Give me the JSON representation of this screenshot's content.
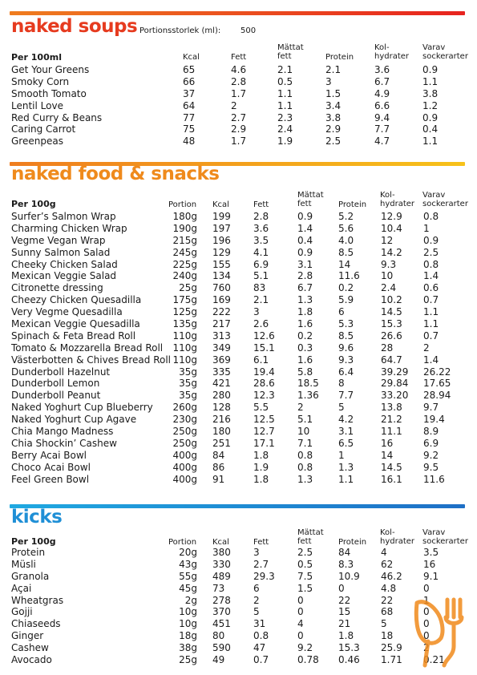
{
  "soups": {
    "title": "naked soups",
    "portion_label": "Portionsstorlek (ml):",
    "portion_value": "500",
    "headers": {
      "first": "Per 100ml",
      "kcal": "Kcal",
      "fett": "Fett",
      "mattat": [
        "Mättat",
        "fett"
      ],
      "protein": "Protein",
      "kolhydrater": [
        "Kol-",
        "hydrater"
      ],
      "varav": [
        "Varav",
        "sockerarter"
      ]
    },
    "rows": [
      {
        "name": "Get Your Greens",
        "kcal": "65",
        "fett": "4.6",
        "mattat": "2.1",
        "protein": "2.1",
        "kolhydrater": "3.6",
        "socker": "0.9"
      },
      {
        "name": "Smoky Corn",
        "kcal": "66",
        "fett": "2.8",
        "mattat": "0.5",
        "protein": "3",
        "kolhydrater": "6.7",
        "socker": "1.1"
      },
      {
        "name": "Smooth Tomato",
        "kcal": "37",
        "fett": "1.7",
        "mattat": "1.1",
        "protein": "1.5",
        "kolhydrater": "4.9",
        "socker": "3.8"
      },
      {
        "name": "Lentil Love",
        "kcal": "64",
        "fett": "2",
        "mattat": "1.1",
        "protein": "3.4",
        "kolhydrater": "6.6",
        "socker": "1.2"
      },
      {
        "name": "Red Curry & Beans",
        "kcal": "77",
        "fett": "2.7",
        "mattat": "2.3",
        "protein": "3.8",
        "kolhydrater": "9.4",
        "socker": "0.9"
      },
      {
        "name": "Caring Carrot",
        "kcal": "75",
        "fett": "2.9",
        "mattat": "2.4",
        "protein": "2.9",
        "kolhydrater": "7.7",
        "socker": "0.4"
      },
      {
        "name": "Greenpeas",
        "kcal": "48",
        "fett": "1.7",
        "mattat": "1.9",
        "protein": "2.5",
        "kolhydrater": "4.7",
        "socker": "1.1"
      }
    ]
  },
  "food": {
    "title": "naked food & snacks",
    "headers": {
      "first": "Per 100g",
      "portion": "Portion",
      "kcal": "Kcal",
      "fett": "Fett",
      "mattat": [
        "Mättat",
        "fett"
      ],
      "protein": "Protein",
      "kolhydrater": [
        "Kol-",
        "hydrater"
      ],
      "varav": [
        "Varav",
        "sockerarter"
      ]
    },
    "rows": [
      {
        "name": "Surfer’s Salmon Wrap",
        "portion": "180g",
        "kcal": "199",
        "fett": "2.8",
        "mattat": "0.9",
        "protein": "5.2",
        "kolhydrater": "12.9",
        "socker": "0.8"
      },
      {
        "name": "Charming Chicken Wrap",
        "portion": "190g",
        "kcal": "197",
        "fett": "3.6",
        "mattat": "1.4",
        "protein": "5.6",
        "kolhydrater": "10.4",
        "socker": "1"
      },
      {
        "name": "Vegme Vegan Wrap",
        "portion": "215g",
        "kcal": "196",
        "fett": "3.5",
        "mattat": "0.4",
        "protein": "4.0",
        "kolhydrater": "12",
        "socker": "0.9"
      },
      {
        "name": "Sunny Salmon Salad",
        "portion": "245g",
        "kcal": "129",
        "fett": "4.1",
        "mattat": "0.9",
        "protein": "8.5",
        "kolhydrater": "14.2",
        "socker": "2.5"
      },
      {
        "name": "Cheeky Chicken Salad",
        "portion": "225g",
        "kcal": "155",
        "fett": "6.9",
        "mattat": "3.1",
        "protein": "14",
        "kolhydrater": "9.3",
        "socker": "0.8"
      },
      {
        "name": "Mexican Veggie Salad",
        "portion": "240g",
        "kcal": "134",
        "fett": "5.1",
        "mattat": "2.8",
        "protein": "11.6",
        "kolhydrater": "10",
        "socker": "1.4"
      },
      {
        "name": "Citronette dressing",
        "portion": "25g",
        "kcal": "760",
        "fett": "83",
        "mattat": "6.7",
        "protein": "0.2",
        "kolhydrater": "2.4",
        "socker": "0.6"
      },
      {
        "name": "Cheezy Chicken Quesadilla",
        "portion": "175g",
        "kcal": "169",
        "fett": "2.1",
        "mattat": "1.3",
        "protein": "5.9",
        "kolhydrater": "10.2",
        "socker": "0.7"
      },
      {
        "name": "Very Vegme Quesadilla",
        "portion": "125g",
        "kcal": "222",
        "fett": "3",
        "mattat": "1.8",
        "protein": "6",
        "kolhydrater": "14.5",
        "socker": "1.1"
      },
      {
        "name": "Mexican Veggie Quesadilla",
        "portion": "135g",
        "kcal": "217",
        "fett": "2.6",
        "mattat": "1.6",
        "protein": "5.3",
        "kolhydrater": "15.3",
        "socker": "1.1"
      },
      {
        "name": "Spinach & Feta Bread Roll",
        "portion": "110g",
        "kcal": "313",
        "fett": "12.6",
        "mattat": "0.2",
        "protein": "8.5",
        "kolhydrater": "26.6",
        "socker": "0.7"
      },
      {
        "name": "Tomato & Mozzarella Bread Roll",
        "portion": "110g",
        "kcal": "349",
        "fett": "15.1",
        "mattat": "0.3",
        "protein": "9.6",
        "kolhydrater": "28",
        "socker": "2"
      },
      {
        "name": "Västerbotten & Chives Bread Roll",
        "portion": "110g",
        "kcal": "369",
        "fett": "6.1",
        "mattat": "1.6",
        "protein": "9.3",
        "kolhydrater": "64.7",
        "socker": "1.4"
      },
      {
        "name": "Dunderboll Hazelnut",
        "portion": "35g",
        "kcal": "335",
        "fett": "19.4",
        "mattat": "5.8",
        "protein": "6.4",
        "kolhydrater": "39.29",
        "socker": "26.22"
      },
      {
        "name": "Dunderboll Lemon",
        "portion": "35g",
        "kcal": "421",
        "fett": "28.6",
        "mattat": "18.5",
        "protein": "8",
        "kolhydrater": "29.84",
        "socker": "17.65"
      },
      {
        "name": "Dunderboll Peanut",
        "portion": "35g",
        "kcal": "280",
        "fett": "12.3",
        "mattat": "1.36",
        "protein": "7.7",
        "kolhydrater": "33.20",
        "socker": "28.94"
      },
      {
        "name": "Naked Yoghurt Cup Blueberry",
        "portion": "260g",
        "kcal": "128",
        "fett": "5.5",
        "mattat": "2",
        "protein": "5",
        "kolhydrater": "13.8",
        "socker": "9.7"
      },
      {
        "name": "Naked Yoghurt Cup Agave",
        "portion": "230g",
        "kcal": "216",
        "fett": "12.5",
        "mattat": "5.1",
        "protein": "4.2",
        "kolhydrater": "21.2",
        "socker": "19.4"
      },
      {
        "name": "Chia Mango Madness",
        "portion": "250g",
        "kcal": "180",
        "fett": "12.7",
        "mattat": "10",
        "protein": "3.1",
        "kolhydrater": "11.1",
        "socker": "8.9"
      },
      {
        "name": "Chia Shockin’ Cashew",
        "portion": "250g",
        "kcal": "251",
        "fett": "17.1",
        "mattat": "7.1",
        "protein": "6.5",
        "kolhydrater": "16",
        "socker": "6.9"
      },
      {
        "name": "Berry Acai Bowl",
        "portion": "400g",
        "kcal": "84",
        "fett": "1.8",
        "mattat": "0.8",
        "protein": "1",
        "kolhydrater": "14",
        "socker": "9.2"
      },
      {
        "name": "Choco Acai Bowl",
        "portion": "400g",
        "kcal": "86",
        "fett": "1.9",
        "mattat": "0.8",
        "protein": "1.3",
        "kolhydrater": "14.5",
        "socker": "9.5"
      },
      {
        "name": "Feel Green Bowl",
        "portion": "400g",
        "kcal": "91",
        "fett": "1.8",
        "mattat": "1.3",
        "protein": "1.1",
        "kolhydrater": "16.1",
        "socker": "11.6"
      }
    ]
  },
  "kicks": {
    "title": "kicks",
    "headers": {
      "first": "Per 100g",
      "portion": "Portion",
      "kcal": "Kcal",
      "fett": "Fett",
      "mattat": [
        "Mättat",
        "fett"
      ],
      "protein": "Protein",
      "kolhydrater": [
        "Kol-",
        "hydrater"
      ],
      "varav": [
        "Varav",
        "sockerarter"
      ]
    },
    "rows": [
      {
        "name": "Protein",
        "portion": "20g",
        "kcal": "380",
        "fett": "3",
        "mattat": "2.5",
        "protein": "84",
        "kolhydrater": "4",
        "socker": "3.5"
      },
      {
        "name": "Müsli",
        "portion": "43g",
        "kcal": "330",
        "fett": "2.7",
        "mattat": "0.5",
        "protein": "8.3",
        "kolhydrater": "62",
        "socker": "16"
      },
      {
        "name": "Granola",
        "portion": "55g",
        "kcal": "489",
        "fett": "29.3",
        "mattat": "7.5",
        "protein": "10.9",
        "kolhydrater": "46.2",
        "socker": "9.1"
      },
      {
        "name": "Açai",
        "portion": "45g",
        "kcal": "73",
        "fett": "6",
        "mattat": "1.5",
        "protein": "0",
        "kolhydrater": "4.8",
        "socker": "0"
      },
      {
        "name": "Wheatgras",
        "portion": "2g",
        "kcal": "278",
        "fett": "2",
        "mattat": "0",
        "protein": "22",
        "kolhydrater": "22",
        "socker": "1"
      },
      {
        "name": "Gojji",
        "portion": "10g",
        "kcal": "370",
        "fett": "5",
        "mattat": "0",
        "protein": "15",
        "kolhydrater": "68",
        "socker": "0"
      },
      {
        "name": "Chiaseeds",
        "portion": "10g",
        "kcal": "451",
        "fett": "31",
        "mattat": "4",
        "protein": "21",
        "kolhydrater": "5",
        "socker": "0"
      },
      {
        "name": "Ginger",
        "portion": "18g",
        "kcal": "80",
        "fett": "0.8",
        "mattat": "0",
        "protein": "1.8",
        "kolhydrater": "18",
        "socker": "0"
      },
      {
        "name": "Cashew",
        "portion": "38g",
        "kcal": "590",
        "fett": "47",
        "mattat": "9.2",
        "protein": "15.3",
        "kolhydrater": "25.9",
        "socker": "2"
      },
      {
        "name": "Avocado",
        "portion": "25g",
        "kcal": "49",
        "fett": "0.7",
        "mattat": "0.78",
        "protein": "0.46",
        "kolhydrater": "1.71",
        "socker": "0.21"
      }
    ]
  },
  "decoration": {
    "icon": "fork-spoon-icon",
    "color": "#f08a1c"
  },
  "colors": {
    "soups": "#e63b1f",
    "food": "#ef8a1c",
    "kicks": "#1f8fd6"
  }
}
